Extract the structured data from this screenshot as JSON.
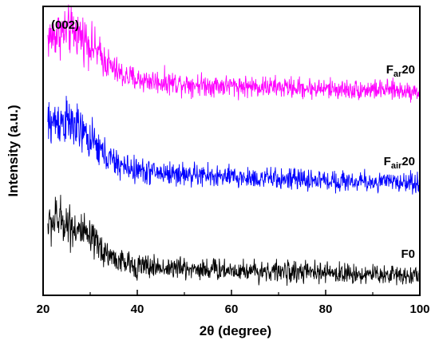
{
  "chart_data": {
    "type": "line",
    "xlabel": "2θ (degree)",
    "ylabel": "Intensity (a.u.)",
    "xlim": [
      20,
      100
    ],
    "x_ticks": [
      20,
      40,
      60,
      80,
      100
    ],
    "y_ticks_labeled": false,
    "grid": false,
    "legend": "inline labels at right end of each curve",
    "annotations": [
      {
        "text": "(002)"
      }
    ],
    "series": [
      {
        "name": "Far20",
        "label_main": "F",
        "label_sub": "ar",
        "label_tail": "20",
        "color": "#ff00ff",
        "offset": 2.4,
        "x": [
          21,
          23,
          25,
          27,
          29,
          31,
          33,
          35,
          37,
          40,
          45,
          50,
          55,
          60,
          65,
          70,
          75,
          80,
          85,
          90,
          95,
          100
        ],
        "y": [
          0.78,
          0.84,
          0.88,
          0.86,
          0.78,
          0.64,
          0.5,
          0.38,
          0.3,
          0.25,
          0.22,
          0.2,
          0.18,
          0.17,
          0.16,
          0.15,
          0.14,
          0.13,
          0.12,
          0.12,
          0.11,
          0.1
        ]
      },
      {
        "name": "Fair20",
        "label_main": "F",
        "label_sub": "air",
        "label_tail": "20",
        "color": "#0000ff",
        "offset": 1.2,
        "x": [
          21,
          23,
          25,
          27,
          29,
          31,
          33,
          35,
          37,
          40,
          45,
          50,
          55,
          60,
          65,
          70,
          75,
          80,
          85,
          90,
          95,
          100
        ],
        "y": [
          0.86,
          0.92,
          0.9,
          0.83,
          0.72,
          0.6,
          0.48,
          0.38,
          0.32,
          0.27,
          0.24,
          0.22,
          0.2,
          0.18,
          0.17,
          0.16,
          0.15,
          0.14,
          0.13,
          0.12,
          0.12,
          0.11
        ]
      },
      {
        "name": "F0",
        "label_main": "F0",
        "label_sub": "",
        "label_tail": "",
        "color": "#000000",
        "offset": 0,
        "x": [
          21,
          23,
          25,
          27,
          29,
          31,
          33,
          35,
          37,
          40,
          45,
          50,
          55,
          60,
          65,
          70,
          75,
          80,
          85,
          90,
          95,
          100
        ],
        "y": [
          0.76,
          0.84,
          0.8,
          0.72,
          0.62,
          0.52,
          0.42,
          0.33,
          0.27,
          0.23,
          0.21,
          0.2,
          0.19,
          0.18,
          0.17,
          0.16,
          0.15,
          0.14,
          0.13,
          0.12,
          0.12,
          0.11
        ]
      }
    ]
  }
}
